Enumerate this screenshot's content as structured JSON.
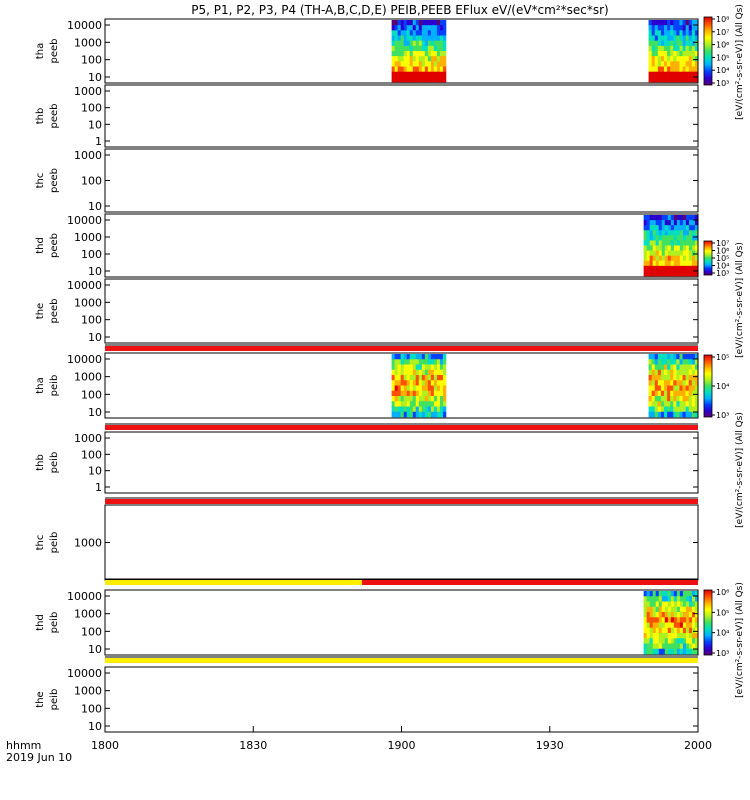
{
  "chart_data": {
    "type": "heatmap",
    "title": "P5, P1, P2, P3, P4 (TH-A,B,C,D,E) PEIB,PEEB EFlux eV/(eV*cm²*sec*sr)",
    "x_title_line1": "hhmm",
    "x_title_line2": "2019 Jun 10",
    "x_ticks": [
      "1800",
      "1830",
      "1900",
      "1930",
      "2000"
    ],
    "x_range_hhmm": [
      "1800",
      "2000"
    ],
    "panels": [
      {
        "id": "tha-peeb",
        "label_line1": "tha",
        "label_line2": "peeb",
        "y_ticks": [
          "10",
          "100",
          "1000",
          "10000"
        ],
        "y_scale": "log",
        "data_intervals_hhmm": [
          [
            "1858",
            "1909"
          ],
          [
            "1950",
            "2000"
          ]
        ]
      },
      {
        "id": "thb-peeb",
        "label_line1": "thb",
        "label_line2": "peeb",
        "y_ticks": [
          "1",
          "10",
          "100",
          "1000"
        ],
        "y_scale": "log",
        "data_intervals_hhmm": []
      },
      {
        "id": "thc-peeb",
        "label_line1": "thc",
        "label_line2": "peeb",
        "y_ticks": [
          "10",
          "100",
          "1000"
        ],
        "y_scale": "log",
        "data_intervals_hhmm": []
      },
      {
        "id": "thd-peeb",
        "label_line1": "thd",
        "label_line2": "peeb",
        "y_ticks": [
          "10",
          "100",
          "1000",
          "10000"
        ],
        "y_scale": "log",
        "data_intervals_hhmm": [
          [
            "1949",
            "2000"
          ]
        ]
      },
      {
        "id": "the-peeb",
        "label_line1": "the",
        "label_line2": "peeb",
        "y_ticks": [
          "10",
          "100",
          "1000",
          "10000"
        ],
        "y_scale": "log",
        "data_intervals_hhmm": []
      },
      {
        "id": "tha-peib",
        "label_line1": "tha",
        "label_line2": "peib",
        "y_ticks": [
          "10",
          "100",
          "1000",
          "10000"
        ],
        "y_scale": "log",
        "data_intervals_hhmm": [
          [
            "1858",
            "1909"
          ],
          [
            "1950",
            "2000"
          ]
        ]
      },
      {
        "id": "thb-peib",
        "label_line1": "thb",
        "label_line2": "peib",
        "y_ticks": [
          "1",
          "10",
          "100",
          "1000"
        ],
        "y_scale": "log",
        "data_intervals_hhmm": []
      },
      {
        "id": "thc-peib",
        "label_line1": "thc",
        "label_line2": "peib",
        "y_ticks": [
          "1000"
        ],
        "y_scale": "log",
        "data_intervals_hhmm": []
      },
      {
        "id": "thd-peib",
        "label_line1": "thd",
        "label_line2": "peib",
        "y_ticks": [
          "10",
          "100",
          "1000",
          "10000"
        ],
        "y_scale": "log",
        "data_intervals_hhmm": [
          [
            "1949",
            "2000"
          ]
        ]
      },
      {
        "id": "the-peib",
        "label_line1": "the",
        "label_line2": "peib",
        "y_ticks": [
          "10",
          "100",
          "1000",
          "10000"
        ],
        "y_scale": "log",
        "data_intervals_hhmm": []
      }
    ],
    "status_bars": [
      {
        "after_panel": "the-peeb",
        "segments": [
          {
            "from_hhmm": "1800",
            "to_hhmm": "2000",
            "color": "#ee1111"
          }
        ]
      },
      {
        "after_panel": "tha-peib",
        "segments": [
          {
            "from_hhmm": "1800",
            "to_hhmm": "2000",
            "color": "#ee1111"
          }
        ]
      },
      {
        "after_panel": "thb-peib",
        "segments": [
          {
            "from_hhmm": "1800",
            "to_hhmm": "2000",
            "color": "#ee1111"
          }
        ]
      },
      {
        "after_panel": "thc-peib",
        "segments": [
          {
            "from_hhmm": "1800",
            "to_hhmm": "1852",
            "color": "#ffee00"
          },
          {
            "from_hhmm": "1852",
            "to_hhmm": "2000",
            "color": "#ee1111"
          }
        ]
      },
      {
        "after_panel": "thd-peib",
        "segments": [
          {
            "from_hhmm": "1800",
            "to_hhmm": "2000",
            "color": "#ffee00"
          }
        ]
      }
    ],
    "colorbars": [
      {
        "id": "cb-tha-peeb",
        "panel": "tha-peeb",
        "tick_labels": [
          "10³",
          "10⁴",
          "10⁵",
          "10⁶",
          "10⁷",
          "10⁸"
        ]
      },
      {
        "id": "cb-thd-peeb",
        "panel": "thd-peeb",
        "tick_labels": [
          "10³",
          "10⁴",
          "10⁵",
          "10⁶",
          "10⁷"
        ]
      },
      {
        "id": "cb-tha-peib",
        "panel": "tha-peib",
        "tick_labels": [
          "10³",
          "10⁴",
          "10⁵"
        ]
      },
      {
        "id": "cb-thd-peib",
        "panel": "thd-peib",
        "tick_labels": [
          "10³",
          "10⁴",
          "10⁵",
          "10⁶"
        ]
      }
    ],
    "colorbar_titles": [
      {
        "id": "cbt-peeb",
        "text": "[eV/(cm²-s-sr-eV)] (All Qs)"
      },
      {
        "id": "cbt-peeb-2",
        "text": "[eV/(cm²-s-sr-eV)] (All Qs)"
      },
      {
        "id": "cbt-peib",
        "text": "[eV/(cm²-s-sr-eV)] (All Qs)"
      },
      {
        "id": "cbt-peib-2",
        "text": "[eV/(cm²-s-sr-eV)] (All Qs)"
      }
    ],
    "colormap": [
      "#5a0070",
      "#2a00d0",
      "#0040ff",
      "#00b0ff",
      "#00e0c0",
      "#40e060",
      "#b0f020",
      "#ffff00",
      "#ffb000",
      "#ff5000",
      "#e00000"
    ],
    "grid": false,
    "legend": "none"
  }
}
